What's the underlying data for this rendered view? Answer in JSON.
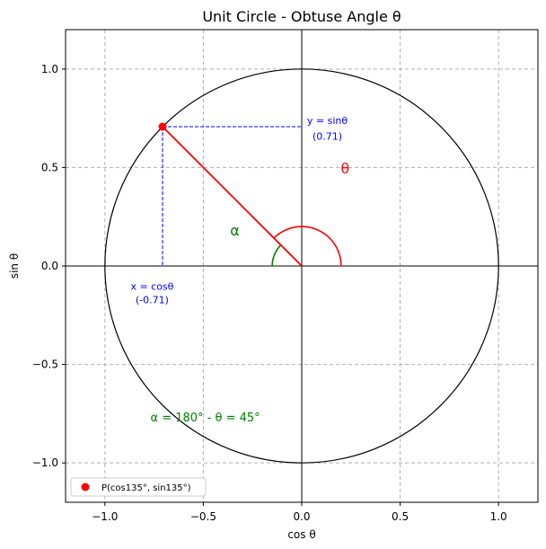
{
  "chart_data": {
    "type": "line",
    "title": "Unit Circle - Obtuse Angle θ",
    "xlabel": "cos θ",
    "ylabel": "sin θ",
    "xlim": [
      -1.2,
      1.2
    ],
    "ylim": [
      -1.2,
      1.2
    ],
    "xticks": [
      -1.0,
      -0.5,
      0.0,
      0.5,
      1.0
    ],
    "yticks": [
      -1.0,
      -0.5,
      0.0,
      0.5,
      1.0
    ],
    "xtick_labels": [
      "−1.0",
      "−0.5",
      "0.0",
      "0.5",
      "1.0"
    ],
    "ytick_labels": [
      "−1.0",
      "−0.5",
      "0.0",
      "0.5",
      "1.0"
    ],
    "grid": true,
    "legend_position": "lower-left",
    "theta_deg": 135,
    "alpha_deg": 45,
    "point": {
      "x": -0.7071,
      "y": 0.7071,
      "label": "P(cos135°, sin135°)"
    },
    "circle_radius": 1.0,
    "theta_arc_radius": 0.2,
    "alpha_arc_radius": 0.15,
    "annotations": {
      "y_label_line1": "y = sinθ",
      "y_label_line2": "(0.71)",
      "x_label_line1": "x = cosθ",
      "x_label_line2": "(-0.71)",
      "theta_symbol": "θ",
      "alpha_symbol": "α",
      "alpha_formula": "α = 180° - θ = 45°"
    },
    "colors": {
      "circle": "#000000",
      "radius": "#ff0000",
      "point": "#ff0000",
      "projection": "#0000ff",
      "theta_arc": "#ff0000",
      "alpha_arc": "#008000",
      "grid": "#b0b0b0"
    }
  }
}
